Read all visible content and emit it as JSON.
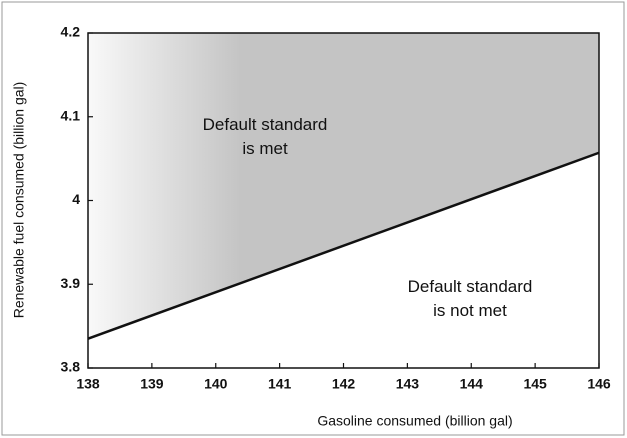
{
  "chart_data": {
    "type": "line",
    "x": [
      138,
      146
    ],
    "series": [
      {
        "color": "#111111",
        "values": [
          3.835,
          4.057
        ]
      }
    ],
    "shade_above": true,
    "shade_color": "#c4c4c4",
    "xlim": [
      138,
      146
    ],
    "ylim": [
      3.8,
      4.2
    ],
    "xticks": [
      138,
      139,
      140,
      141,
      142,
      143,
      144,
      145,
      146
    ],
    "yticks": [
      3.8,
      3.9,
      4,
      4.1,
      4.2
    ],
    "xlabel": "Gasoline consumed (billion gal)",
    "ylabel": "Renewable fuel consumed (billion gal)",
    "annotations": [
      [
        "Default standard",
        "is met"
      ],
      [
        "Default standard",
        "is not met"
      ]
    ]
  }
}
